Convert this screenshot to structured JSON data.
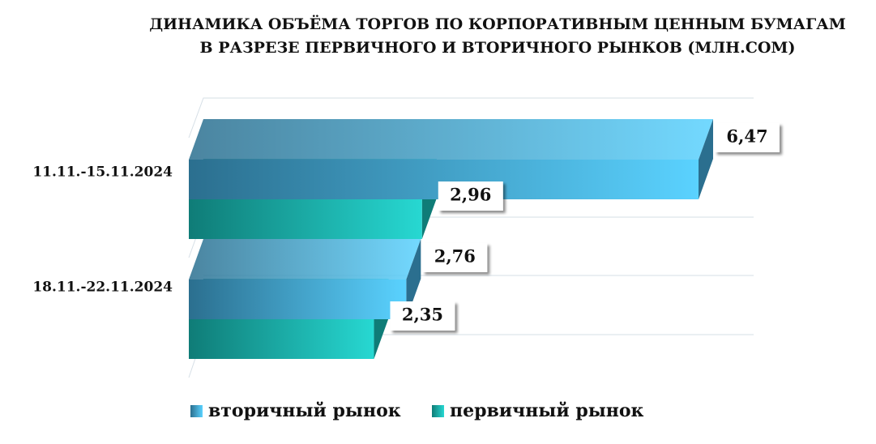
{
  "chart_data": {
    "type": "bar3d",
    "title": [
      "ДИНАМИКА ОБЪЁМА ТОРГОВ ПО КОРПОРАТИВНЫМ ЦЕННЫМ БУМАГАМ",
      "В РАЗРЕЗЕ ПЕРВИЧНОГО И ВТОРИЧНОГО РЫНКОВ  (МЛН.СОМ)"
    ],
    "categories": [
      "11.11.-15.11.2024",
      "18.11.-22.11.2024"
    ],
    "series": [
      {
        "name": "вторичный рынок",
        "color": [
          "#2b6f8f",
          "#5ad2ff"
        ],
        "values": [
          6.47,
          2.76
        ],
        "value_labels": [
          "6,47",
          "2,76"
        ]
      },
      {
        "name": "первичный рынок",
        "color": [
          "#0f7c77",
          "#27d8d2"
        ],
        "values": [
          2.96,
          2.35
        ],
        "value_labels": [
          "2,96",
          "2,35"
        ]
      }
    ]
  }
}
